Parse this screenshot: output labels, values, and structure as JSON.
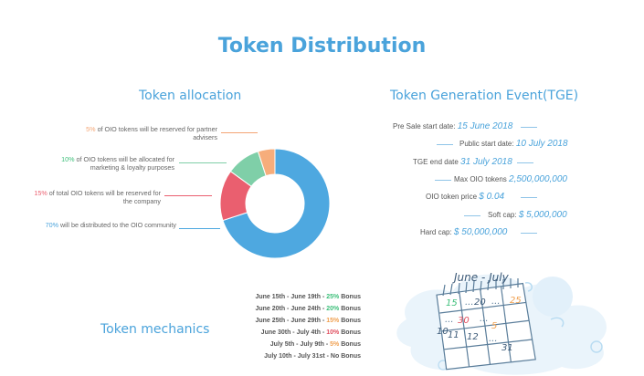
{
  "title": "Token Distribution",
  "allocation": {
    "heading": "Token allocation",
    "notes": [
      {
        "pct": "5%",
        "text": "of OIO tokens will be reserved for partner advisers",
        "color": "#f4a574"
      },
      {
        "pct": "10%",
        "text": "of OIO tokens will be allocated for marketing & loyalty purposes",
        "color": "#6fcf97"
      },
      {
        "pct": "15%",
        "text": "of total OIO tokens will be reserved for the company",
        "color": "#eb6070"
      },
      {
        "pct": "70%",
        "text": "will be distributed to the OIO community",
        "color": "#4aa3db"
      }
    ],
    "donut": [
      {
        "name": "community",
        "value": 70,
        "color": "#4ea8e0"
      },
      {
        "name": "company",
        "value": 15,
        "color": "#ea5f6f"
      },
      {
        "name": "marketing",
        "value": 10,
        "color": "#7fcfa8"
      },
      {
        "name": "advisers",
        "value": 5,
        "color": "#f6ad7b"
      }
    ]
  },
  "tge": {
    "heading": "Token Generation Event(TGE)",
    "rows": [
      {
        "label": "Pre Sale start date:",
        "value": "15 June 2018"
      },
      {
        "label": "Public start date:",
        "value": "10 July 2018"
      },
      {
        "label": "TGE end date",
        "value": "31 July 2018"
      },
      {
        "label": "Max OIO tokens",
        "value": "2,500,000,000"
      },
      {
        "label": "OIO token price",
        "value": "$ 0.04"
      },
      {
        "label": "Soft cap:",
        "value": "$ 5,000,000"
      },
      {
        "label": "Hard cap:",
        "value": "$ 50,000,000"
      }
    ]
  },
  "mechanics": {
    "heading": "Token mechanics",
    "rows": [
      {
        "dates": "June 15th - June 19th -",
        "bonus": "25%",
        "suffix": "Bonus",
        "color": "#3dbf7a"
      },
      {
        "dates": "June 20th - June 24th -",
        "bonus": "20%",
        "suffix": "Bonus",
        "color": "#3dbf7a"
      },
      {
        "dates": "June 25th - June 29th -",
        "bonus": "15%",
        "suffix": "Bonus",
        "color": "#f0a050"
      },
      {
        "dates": "June 30th - July 4th -",
        "bonus": "10%",
        "suffix": "Bonus",
        "color": "#e05060"
      },
      {
        "dates": "July 5th - July 9th -",
        "bonus": "5%",
        "suffix": "Bonus",
        "color": "#f0a050"
      },
      {
        "dates": "July 10th - July 31st -",
        "bonus": "No",
        "suffix": "Bonus",
        "color": "#555555"
      }
    ]
  },
  "calendar": {
    "title": "June - July",
    "cells": [
      "15",
      "...",
      "20",
      "...",
      "25",
      "...",
      "30",
      "...",
      "5",
      "10",
      "11",
      "12",
      "...",
      "31"
    ]
  }
}
